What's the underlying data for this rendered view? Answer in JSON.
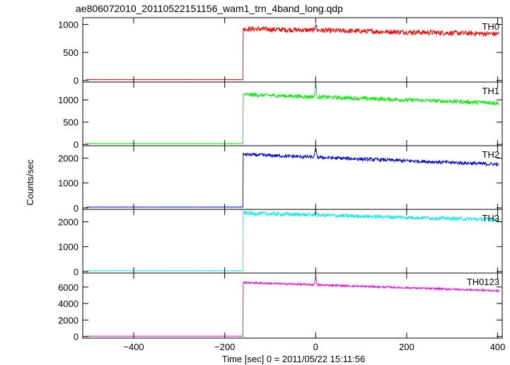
{
  "chart_data": {
    "type": "line",
    "title": "ae806072010_20110522151156_wam1_trn_4band_long.qdp",
    "xlabel": "Time [sec] 0 = 2011/05/22 15:11:56",
    "ylabel": "Counts/sec",
    "xlim": [
      -512,
      410
    ],
    "xticks": [
      -400,
      -200,
      0,
      200,
      400
    ],
    "xtick_labels": [
      "−400",
      "−200",
      "0",
      "200",
      "400"
    ],
    "grid": false,
    "legend": "none",
    "panels": [
      {
        "label": "TH0",
        "color": "#ff0000",
        "ylim": [
          -30,
          1120
        ],
        "yticks": [
          0,
          500,
          1000
        ],
        "tick_labels": [
          "0",
          "500",
          "1000"
        ],
        "model": {
          "pre": 15,
          "step_x": -160,
          "post_start": 920,
          "post_end": 830,
          "noise": 45,
          "spike_height": 130
        }
      },
      {
        "label": "TH1",
        "color": "#00ee00",
        "ylim": [
          -30,
          1400
        ],
        "yticks": [
          0,
          500,
          1000
        ],
        "tick_labels": [
          "0",
          "500",
          "1000"
        ],
        "model": {
          "pre": 20,
          "step_x": -160,
          "post_start": 1120,
          "post_end": 930,
          "noise": 45,
          "spike_height": 280
        }
      },
      {
        "label": "TH2",
        "color": "#0000dd",
        "ylim": [
          -60,
          2500
        ],
        "yticks": [
          0,
          1000,
          2000
        ],
        "tick_labels": [
          "0",
          "1000",
          "2000"
        ],
        "model": {
          "pre": 30,
          "step_x": -160,
          "post_start": 2150,
          "post_end": 1750,
          "noise": 70,
          "spike_height": 420
        }
      },
      {
        "label": "TH3",
        "color": "#00eeee",
        "ylim": [
          -60,
          2500
        ],
        "yticks": [
          0,
          1000,
          2000
        ],
        "tick_labels": [
          "0",
          "1000",
          "2000"
        ],
        "model": {
          "pre": 30,
          "step_x": -160,
          "post_start": 2350,
          "post_end": 2080,
          "noise": 75,
          "spike_height": 180
        }
      },
      {
        "label": "TH0123",
        "color": "#ee00ee",
        "ylim": [
          -200,
          7700
        ],
        "yticks": [
          0,
          2000,
          4000,
          6000
        ],
        "tick_labels": [
          "0",
          "2000",
          "4000",
          "6000"
        ],
        "model": {
          "pre": 40,
          "step_x": -160,
          "post_start": 6550,
          "post_end": 5550,
          "noise": 110,
          "spike_height": 1100
        }
      }
    ]
  }
}
